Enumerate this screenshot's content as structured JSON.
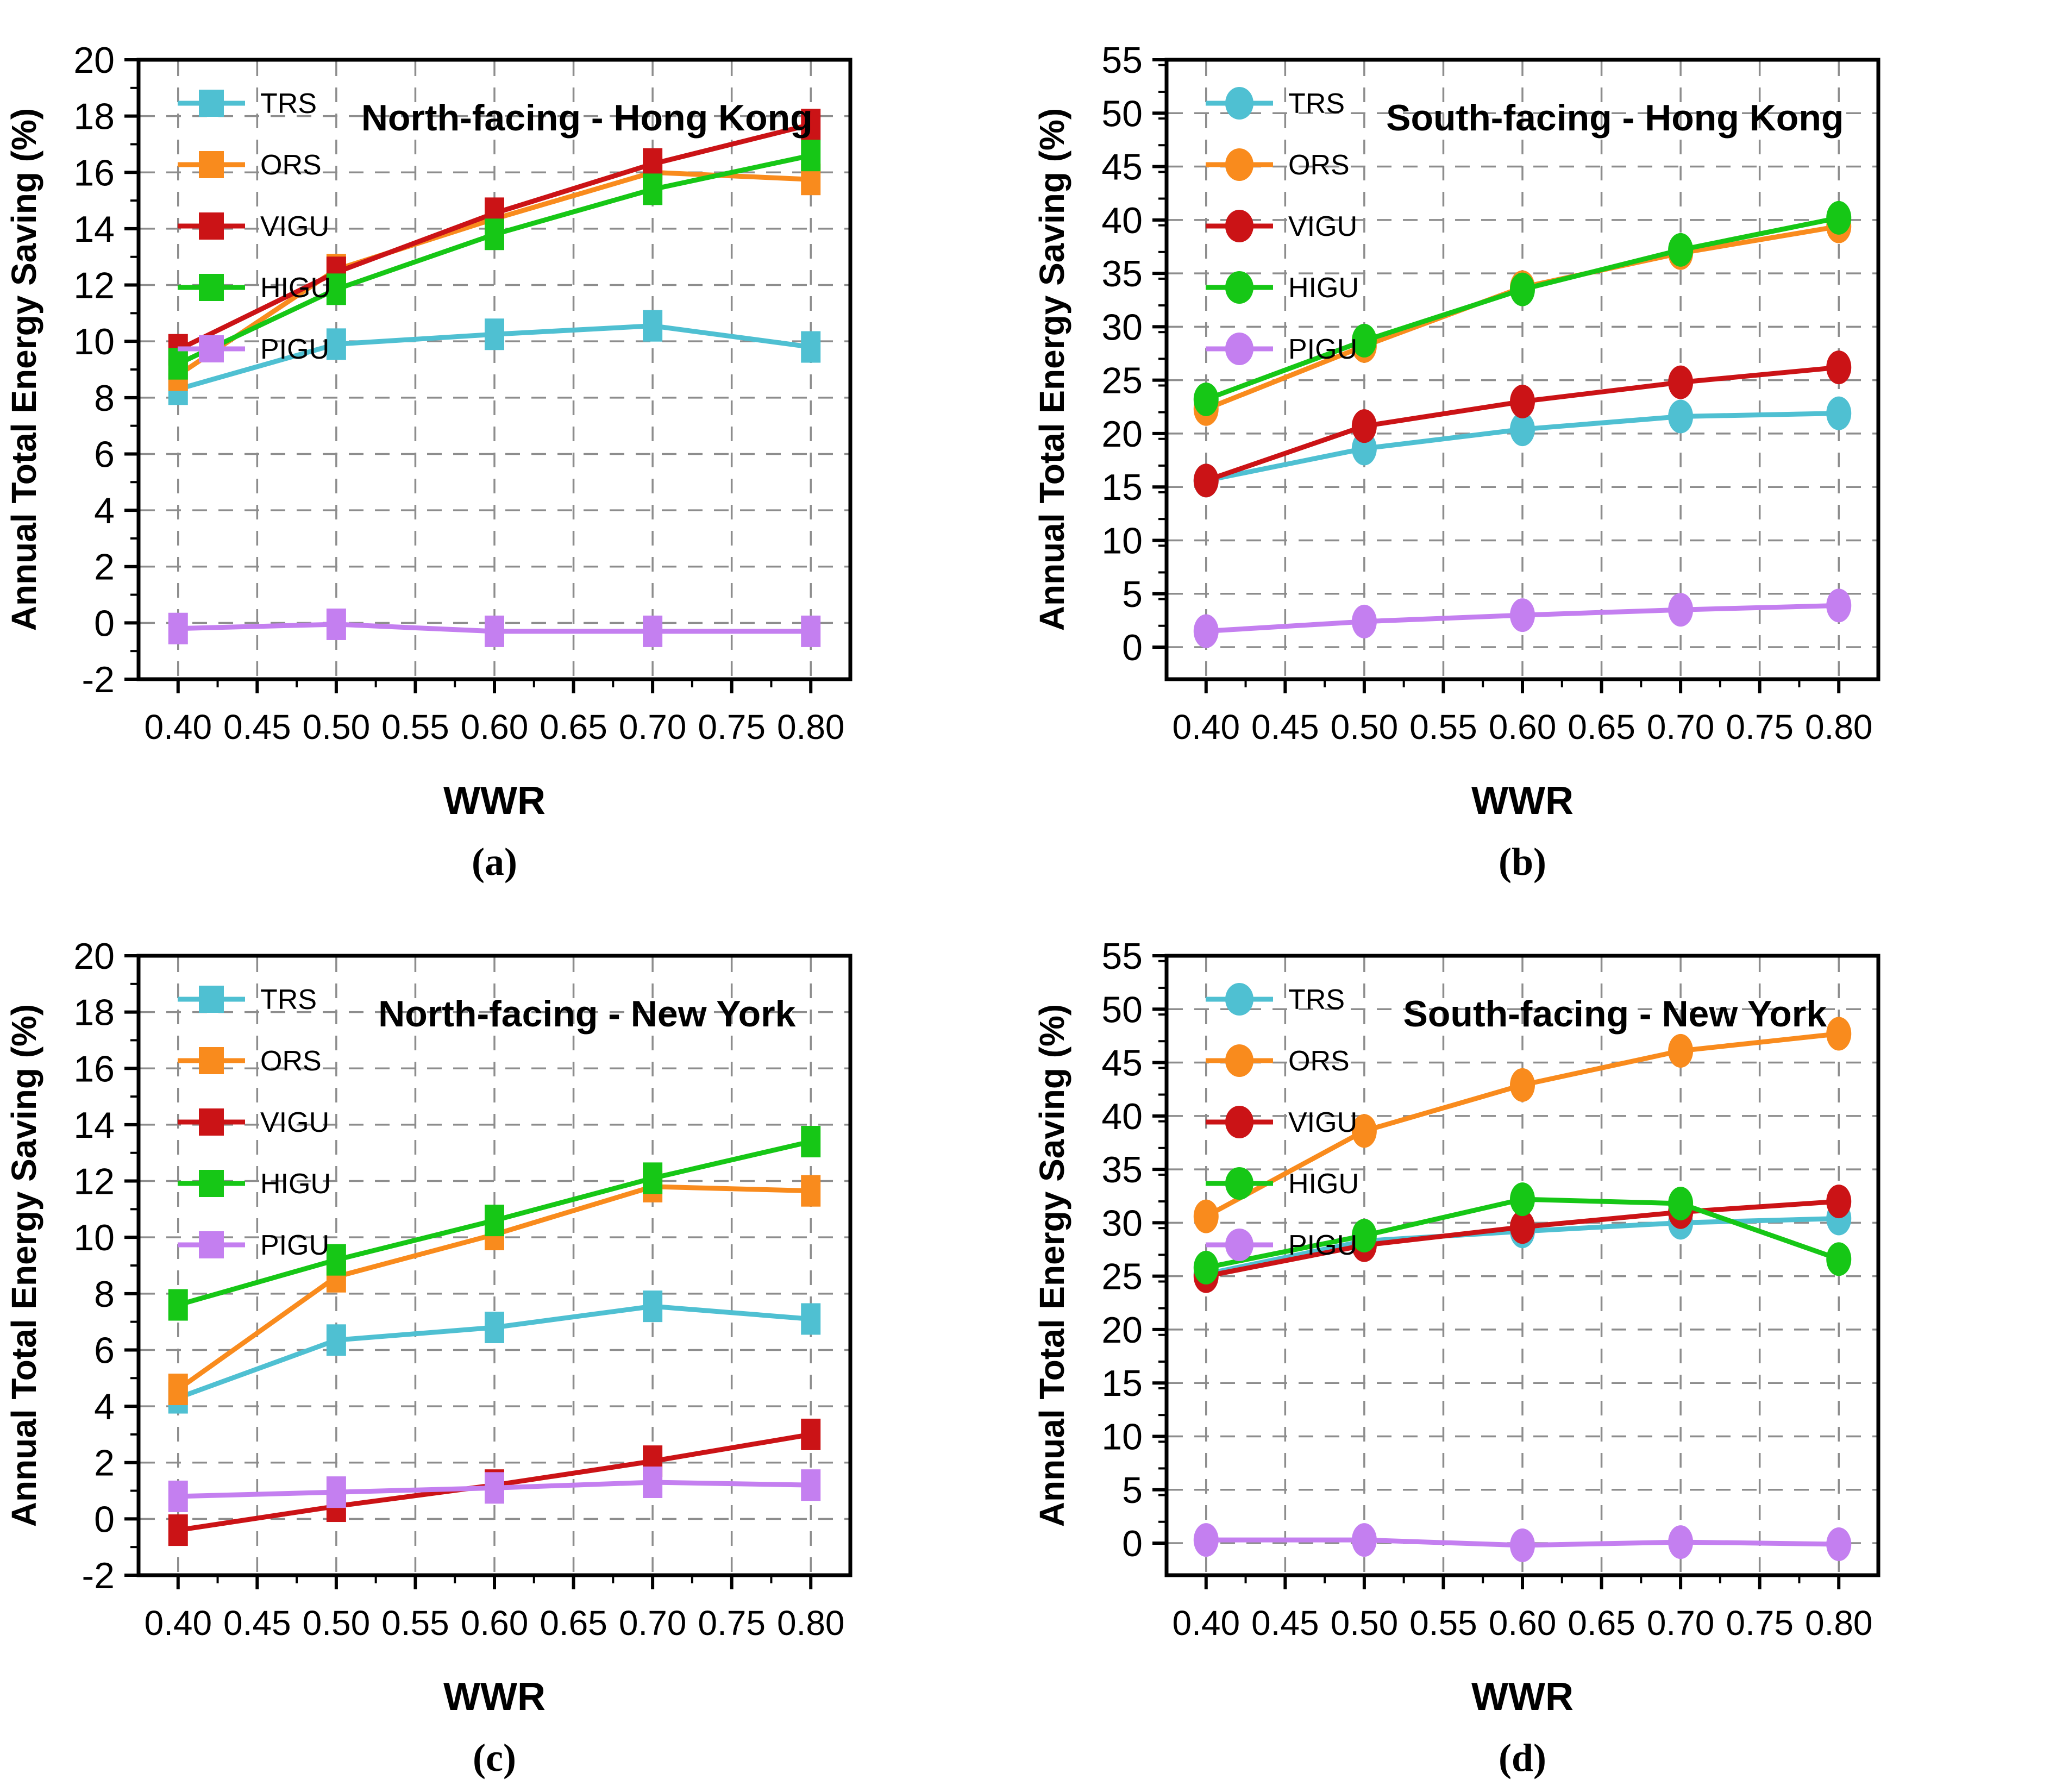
{
  "figure": {
    "background": "#ffffff",
    "grid_color": "#8d8d8d",
    "axis_color": "#000000"
  },
  "captions": {
    "a": "(a)",
    "b": "(b)",
    "c": "(c)",
    "d": "(d)"
  },
  "chart_data": [
    {
      "id": "a",
      "type": "line",
      "title": "North-facing - Hong Kong",
      "xlabel": "WWR",
      "ylabel": "Annual Total Energy Saving (%)",
      "panel_label": "(a)",
      "marker": "square",
      "grid": true,
      "legend_position": "upper-left",
      "x": [
        0.4,
        0.5,
        0.6,
        0.7,
        0.8
      ],
      "xticks": [
        0.4,
        0.45,
        0.5,
        0.55,
        0.6,
        0.65,
        0.7,
        0.75,
        0.8
      ],
      "xlim": [
        0.375,
        0.825
      ],
      "ylim": [
        -2,
        20
      ],
      "yticks": [
        -2,
        0,
        2,
        4,
        6,
        8,
        10,
        12,
        14,
        16,
        18,
        20
      ],
      "yminor_step": 1,
      "series": [
        {
          "name": "TRS",
          "color": "#4fc0d2",
          "values": [
            8.3,
            9.9,
            10.25,
            10.55,
            9.8
          ]
        },
        {
          "name": "ORS",
          "color": "#f98b1d",
          "values": [
            8.8,
            12.55,
            14.35,
            16.0,
            15.75
          ]
        },
        {
          "name": "VIGU",
          "color": "#cb1316",
          "values": [
            9.7,
            12.45,
            14.55,
            16.3,
            17.7
          ]
        },
        {
          "name": "HIGU",
          "color": "#16c716",
          "values": [
            9.2,
            11.85,
            13.8,
            15.4,
            16.6
          ]
        },
        {
          "name": "PIGU",
          "color": "#c47ff0",
          "values": [
            -0.2,
            -0.05,
            -0.3,
            -0.3,
            -0.3
          ]
        }
      ]
    },
    {
      "id": "b",
      "type": "line",
      "title": "South-facing - Hong Kong",
      "xlabel": "WWR",
      "ylabel": "Annual Total Energy Saving (%)",
      "panel_label": "(b)",
      "marker": "circle",
      "grid": true,
      "legend_position": "upper-left",
      "x": [
        0.4,
        0.5,
        0.6,
        0.7,
        0.8
      ],
      "xticks": [
        0.4,
        0.45,
        0.5,
        0.55,
        0.6,
        0.65,
        0.7,
        0.75,
        0.8
      ],
      "xlim": [
        0.375,
        0.825
      ],
      "ylim": [
        -3,
        55
      ],
      "yticks": [
        0,
        5,
        10,
        15,
        20,
        25,
        30,
        35,
        40,
        45,
        50,
        55
      ],
      "yminor_step": 2.5,
      "series": [
        {
          "name": "TRS",
          "color": "#4fc0d2",
          "values": [
            15.6,
            18.6,
            20.4,
            21.6,
            21.9
          ]
        },
        {
          "name": "ORS",
          "color": "#f98b1d",
          "values": [
            22.3,
            28.2,
            33.7,
            36.9,
            39.4
          ]
        },
        {
          "name": "VIGU",
          "color": "#cb1316",
          "values": [
            15.6,
            20.7,
            23.0,
            24.8,
            26.2
          ]
        },
        {
          "name": "HIGU",
          "color": "#16c716",
          "values": [
            23.2,
            28.7,
            33.5,
            37.2,
            40.2
          ]
        },
        {
          "name": "PIGU",
          "color": "#c47ff0",
          "values": [
            1.5,
            2.4,
            3.0,
            3.5,
            3.9
          ]
        }
      ]
    },
    {
      "id": "c",
      "type": "line",
      "title": "North-facing - New York",
      "xlabel": "WWR",
      "ylabel": "Annual Total Energy Saving (%)",
      "panel_label": "(c)",
      "marker": "square",
      "grid": true,
      "legend_position": "upper-left",
      "x": [
        0.4,
        0.5,
        0.6,
        0.7,
        0.8
      ],
      "xticks": [
        0.4,
        0.45,
        0.5,
        0.55,
        0.6,
        0.65,
        0.7,
        0.75,
        0.8
      ],
      "xlim": [
        0.375,
        0.825
      ],
      "ylim": [
        -2,
        20
      ],
      "yticks": [
        -2,
        0,
        2,
        4,
        6,
        8,
        10,
        12,
        14,
        16,
        18,
        20
      ],
      "yminor_step": 1,
      "series": [
        {
          "name": "TRS",
          "color": "#4fc0d2",
          "values": [
            4.3,
            6.35,
            6.8,
            7.55,
            7.1
          ]
        },
        {
          "name": "ORS",
          "color": "#f98b1d",
          "values": [
            4.6,
            8.6,
            10.1,
            11.8,
            11.65
          ]
        },
        {
          "name": "VIGU",
          "color": "#cb1316",
          "values": [
            -0.4,
            0.45,
            1.2,
            2.05,
            3.0
          ]
        },
        {
          "name": "HIGU",
          "color": "#16c716",
          "values": [
            7.6,
            9.2,
            10.6,
            12.1,
            13.4
          ]
        },
        {
          "name": "PIGU",
          "color": "#c47ff0",
          "values": [
            0.8,
            0.95,
            1.1,
            1.3,
            1.2
          ]
        }
      ]
    },
    {
      "id": "d",
      "type": "line",
      "title": "South-facing - New York",
      "xlabel": "WWR",
      "ylabel": "Annual Total Energy Saving (%)",
      "panel_label": "(d)",
      "marker": "circle",
      "grid": true,
      "legend_position": "upper-left",
      "x": [
        0.4,
        0.5,
        0.6,
        0.7,
        0.8
      ],
      "xticks": [
        0.4,
        0.45,
        0.5,
        0.55,
        0.6,
        0.65,
        0.7,
        0.75,
        0.8
      ],
      "xlim": [
        0.375,
        0.825
      ],
      "ylim": [
        -3,
        55
      ],
      "yticks": [
        0,
        5,
        10,
        15,
        20,
        25,
        30,
        35,
        40,
        45,
        50,
        55
      ],
      "yminor_step": 2.5,
      "series": [
        {
          "name": "TRS",
          "color": "#4fc0d2",
          "values": [
            25.2,
            28.3,
            29.2,
            30.0,
            30.4
          ]
        },
        {
          "name": "ORS",
          "color": "#f98b1d",
          "values": [
            30.6,
            38.6,
            42.9,
            46.1,
            47.7
          ]
        },
        {
          "name": "VIGU",
          "color": "#cb1316",
          "values": [
            25.0,
            27.9,
            29.6,
            31.0,
            32.0
          ]
        },
        {
          "name": "HIGU",
          "color": "#16c716",
          "values": [
            25.8,
            28.8,
            32.2,
            31.8,
            26.6
          ]
        },
        {
          "name": "PIGU",
          "color": "#c47ff0",
          "values": [
            0.3,
            0.3,
            -0.2,
            0.1,
            -0.1
          ]
        }
      ]
    }
  ]
}
